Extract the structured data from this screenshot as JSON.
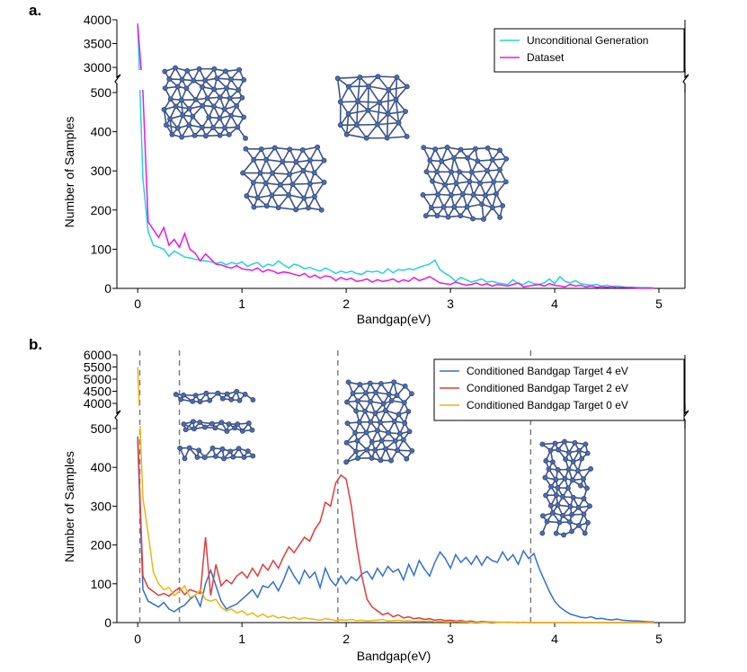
{
  "chart_data": [
    {
      "panel": "a.",
      "type": "line",
      "xlabel": "Bandgap(eV)",
      "ylabel": "Number of Samples",
      "xlim": [
        -0.2,
        5.25
      ],
      "xticks": [
        "0",
        "1",
        "2",
        "3",
        "4",
        "5"
      ],
      "broken_y_axis": true,
      "ylim_lower": [
        0,
        500
      ],
      "ylim_upper": [
        3000,
        4000
      ],
      "yticks_lower": [
        "0",
        "100",
        "200",
        "300",
        "400",
        "500"
      ],
      "yticks_upper": [
        "3000",
        "3500",
        "4000"
      ],
      "legend_position": "top-right",
      "grid": false,
      "series": [
        {
          "name": "Unconditional Generation",
          "color": "#22d3e0",
          "x": [
            0.0,
            0.05,
            0.1,
            0.15,
            0.2,
            0.25,
            0.3,
            0.35,
            0.4,
            0.45,
            0.5,
            0.55,
            0.6,
            0.65,
            0.7,
            0.75,
            0.8,
            0.85,
            0.9,
            0.95,
            1.0,
            1.05,
            1.1,
            1.15,
            1.2,
            1.25,
            1.3,
            1.35,
            1.4,
            1.45,
            1.5,
            1.55,
            1.6,
            1.65,
            1.7,
            1.75,
            1.8,
            1.85,
            1.9,
            1.95,
            2.0,
            2.05,
            2.1,
            2.15,
            2.2,
            2.25,
            2.3,
            2.35,
            2.4,
            2.45,
            2.5,
            2.55,
            2.6,
            2.65,
            2.7,
            2.75,
            2.8,
            2.85,
            2.9,
            2.95,
            3.0,
            3.05,
            3.1,
            3.15,
            3.2,
            3.25,
            3.3,
            3.35,
            3.4,
            3.45,
            3.5,
            3.55,
            3.6,
            3.65,
            3.7,
            3.75,
            3.8,
            3.85,
            3.9,
            3.95,
            4.0,
            4.05,
            4.1,
            4.15,
            4.2,
            4.25,
            4.3,
            4.35,
            4.4,
            4.45,
            4.5,
            4.55,
            4.6,
            4.65,
            4.7,
            4.75,
            4.8,
            4.85,
            4.9,
            4.95
          ],
          "y": [
            3930,
            280,
            145,
            110,
            105,
            100,
            82,
            95,
            88,
            80,
            78,
            74,
            72,
            70,
            68,
            64,
            67,
            60,
            66,
            62,
            68,
            56,
            62,
            66,
            54,
            62,
            58,
            70,
            60,
            52,
            62,
            58,
            50,
            54,
            48,
            44,
            52,
            46,
            38,
            44,
            40,
            44,
            38,
            36,
            44,
            42,
            44,
            38,
            50,
            40,
            48,
            46,
            50,
            48,
            54,
            58,
            62,
            72,
            48,
            38,
            30,
            18,
            28,
            22,
            16,
            20,
            24,
            16,
            18,
            14,
            12,
            10,
            22,
            12,
            10,
            18,
            12,
            10,
            14,
            24,
            12,
            30,
            18,
            14,
            20,
            12,
            10,
            8,
            10,
            6,
            8,
            5,
            6,
            4,
            3,
            3,
            2,
            2,
            2,
            1
          ]
        },
        {
          "name": "Dataset",
          "color": "#e619e8",
          "x": [
            0.0,
            0.05,
            0.1,
            0.15,
            0.2,
            0.25,
            0.3,
            0.35,
            0.4,
            0.45,
            0.5,
            0.55,
            0.6,
            0.65,
            0.7,
            0.75,
            0.8,
            0.85,
            0.9,
            0.95,
            1.0,
            1.05,
            1.1,
            1.15,
            1.2,
            1.25,
            1.3,
            1.35,
            1.4,
            1.45,
            1.5,
            1.55,
            1.6,
            1.65,
            1.7,
            1.75,
            1.8,
            1.85,
            1.9,
            1.95,
            2.0,
            2.05,
            2.1,
            2.15,
            2.2,
            2.25,
            2.3,
            2.35,
            2.4,
            2.45,
            2.5,
            2.55,
            2.6,
            2.65,
            2.7,
            2.75,
            2.8,
            2.85,
            2.9,
            2.95,
            3.0,
            3.05,
            3.1,
            3.15,
            3.2,
            3.25,
            3.3,
            3.35,
            3.4,
            3.45,
            3.5,
            3.55,
            3.6,
            3.65,
            3.7,
            3.75,
            3.8,
            3.85,
            3.9,
            3.95,
            4.0,
            4.05,
            4.1,
            4.15,
            4.2,
            4.25,
            4.3,
            4.35,
            4.4,
            4.45,
            4.5,
            4.55,
            4.6,
            4.65,
            4.7,
            4.75,
            4.8,
            4.85,
            4.9,
            4.95
          ],
          "y": [
            3900,
            500,
            170,
            150,
            130,
            155,
            110,
            125,
            105,
            140,
            100,
            90,
            70,
            88,
            75,
            62,
            60,
            55,
            52,
            58,
            50,
            48,
            46,
            52,
            42,
            48,
            44,
            38,
            42,
            40,
            36,
            32,
            38,
            28,
            34,
            26,
            32,
            30,
            20,
            28,
            22,
            26,
            18,
            20,
            24,
            16,
            22,
            18,
            20,
            24,
            16,
            22,
            18,
            28,
            20,
            24,
            30,
            22,
            14,
            12,
            10,
            16,
            12,
            8,
            10,
            14,
            8,
            12,
            6,
            10,
            8,
            6,
            10,
            14,
            4,
            6,
            8,
            10,
            6,
            12,
            8,
            6,
            4,
            10,
            6,
            8,
            4,
            6,
            3,
            4,
            3,
            4,
            2,
            3,
            2,
            2,
            1,
            1,
            1,
            1
          ]
        }
      ]
    },
    {
      "panel": "b.",
      "type": "line",
      "xlabel": "Bandgap(eV)",
      "ylabel": "Number of Samples",
      "xlim": [
        -0.2,
        5.25
      ],
      "xticks": [
        "0",
        "1",
        "2",
        "3",
        "4",
        "5"
      ],
      "broken_y_axis": true,
      "ylim_lower": [
        0,
        500
      ],
      "ylim_upper": [
        4000,
        6000
      ],
      "yticks_lower": [
        "0",
        "100",
        "200",
        "300",
        "400",
        "500"
      ],
      "yticks_upper": [
        "4000",
        "4500",
        "5000",
        "5500",
        "6000"
      ],
      "legend_position": "top-right",
      "grid": false,
      "vlines": [
        0.02,
        0.4,
        1.92,
        3.77
      ],
      "series": [
        {
          "name": "Conditioned Bandgap Target 4 eV",
          "color": "#2f6fd8",
          "x": [
            0.0,
            0.05,
            0.1,
            0.15,
            0.2,
            0.25,
            0.3,
            0.35,
            0.4,
            0.45,
            0.5,
            0.55,
            0.6,
            0.65,
            0.7,
            0.75,
            0.8,
            0.85,
            0.9,
            0.95,
            1.0,
            1.05,
            1.1,
            1.15,
            1.2,
            1.25,
            1.3,
            1.35,
            1.4,
            1.45,
            1.5,
            1.55,
            1.6,
            1.65,
            1.7,
            1.75,
            1.8,
            1.85,
            1.9,
            1.95,
            2.0,
            2.05,
            2.1,
            2.15,
            2.2,
            2.25,
            2.3,
            2.35,
            2.4,
            2.45,
            2.5,
            2.55,
            2.6,
            2.65,
            2.7,
            2.75,
            2.8,
            2.85,
            2.9,
            2.95,
            3.0,
            3.05,
            3.1,
            3.15,
            3.2,
            3.25,
            3.3,
            3.35,
            3.4,
            3.45,
            3.5,
            3.55,
            3.6,
            3.65,
            3.7,
            3.75,
            3.8,
            3.85,
            3.9,
            3.95,
            4.0,
            4.05,
            4.1,
            4.15,
            4.2,
            4.25,
            4.3,
            4.35,
            4.4,
            4.45,
            4.5,
            4.55,
            4.6,
            4.65,
            4.7,
            4.75,
            4.8,
            4.85,
            4.9,
            4.95
          ],
          "y": [
            470,
            85,
            55,
            48,
            40,
            52,
            35,
            28,
            38,
            45,
            60,
            70,
            42,
            100,
            135,
            95,
            55,
            35,
            42,
            48,
            60,
            72,
            85,
            65,
            95,
            90,
            105,
            82,
            110,
            145,
            120,
            100,
            135,
            115,
            130,
            90,
            140,
            110,
            95,
            120,
            100,
            118,
            108,
            125,
            132,
            112,
            140,
            120,
            145,
            130,
            138,
            110,
            150,
            122,
            160,
            138,
            120,
            155,
            182,
            165,
            140,
            175,
            155,
            168,
            150,
            172,
            148,
            170,
            160,
            155,
            182,
            160,
            175,
            150,
            185,
            165,
            178,
            140,
            110,
            80,
            55,
            40,
            30,
            22,
            18,
            14,
            12,
            15,
            10,
            11,
            8,
            7,
            9,
            6,
            5,
            4,
            4,
            3,
            2,
            2
          ]
        },
        {
          "name": "Conditioned Bandgap Target 2 eV",
          "color": "#e03c3c",
          "x": [
            0.0,
            0.05,
            0.1,
            0.15,
            0.2,
            0.25,
            0.3,
            0.35,
            0.4,
            0.45,
            0.5,
            0.55,
            0.6,
            0.65,
            0.7,
            0.75,
            0.8,
            0.85,
            0.9,
            0.95,
            1.0,
            1.05,
            1.1,
            1.15,
            1.2,
            1.25,
            1.3,
            1.35,
            1.4,
            1.45,
            1.5,
            1.55,
            1.6,
            1.65,
            1.7,
            1.75,
            1.8,
            1.85,
            1.9,
            1.95,
            2.0,
            2.05,
            2.1,
            2.15,
            2.2,
            2.25,
            2.3,
            2.35,
            2.4,
            2.45,
            2.5,
            2.55,
            2.6,
            2.65,
            2.7,
            2.75,
            2.8,
            2.85,
            2.9,
            2.95,
            3.0,
            3.05,
            3.1,
            3.15,
            3.2,
            3.25,
            3.3,
            3.35,
            3.4,
            3.45,
            3.5,
            3.55,
            3.6,
            3.65,
            3.7,
            3.75,
            3.8,
            3.85,
            3.9,
            3.95,
            4.0,
            4.05,
            4.1,
            4.15,
            4.2,
            4.25,
            4.3,
            4.35,
            4.4,
            4.45,
            4.5,
            4.55,
            4.6,
            4.65,
            4.7,
            4.75,
            4.8,
            4.85,
            4.9,
            4.95
          ],
          "y": [
            480,
            120,
            90,
            80,
            70,
            75,
            68,
            80,
            90,
            72,
            85,
            80,
            75,
            220,
            70,
            150,
            95,
            110,
            100,
            120,
            130,
            115,
            140,
            120,
            150,
            135,
            160,
            140,
            170,
            195,
            180,
            200,
            220,
            210,
            240,
            260,
            310,
            300,
            360,
            380,
            370,
            300,
            200,
            120,
            60,
            40,
            30,
            20,
            25,
            15,
            20,
            12,
            15,
            10,
            12,
            8,
            10,
            6,
            8,
            5,
            6,
            4,
            5,
            3,
            4,
            2,
            3,
            2,
            2,
            1,
            1,
            1,
            1,
            0,
            1,
            0,
            0,
            0,
            0,
            0,
            0,
            0,
            0,
            0,
            0,
            0,
            0,
            0,
            0,
            0,
            0,
            0,
            0,
            0,
            0,
            0,
            0,
            0,
            0,
            0
          ]
        },
        {
          "name": "Conditioned Bandgap Target 0 eV",
          "color": "#f0b413",
          "x": [
            0.0,
            0.05,
            0.1,
            0.15,
            0.2,
            0.25,
            0.3,
            0.35,
            0.4,
            0.45,
            0.5,
            0.55,
            0.6,
            0.65,
            0.7,
            0.75,
            0.8,
            0.85,
            0.9,
            0.95,
            1.0,
            1.05,
            1.1,
            1.15,
            1.2,
            1.25,
            1.3,
            1.35,
            1.4,
            1.45,
            1.5,
            1.55,
            1.6,
            1.65,
            1.7,
            1.75,
            1.8,
            1.85,
            1.9,
            1.95,
            2.0,
            2.05,
            2.1,
            2.15,
            2.2,
            2.25,
            2.3,
            2.35,
            2.4,
            2.45,
            2.5,
            2.55,
            2.6,
            2.65,
            2.7,
            2.75,
            2.8,
            2.85,
            2.9,
            2.95,
            3.0,
            3.05,
            3.1,
            3.15,
            3.2,
            3.25,
            3.3,
            3.35,
            3.4,
            3.45,
            3.5,
            3.55,
            3.6,
            3.65,
            3.7,
            3.75,
            3.8,
            3.85,
            3.9,
            3.95,
            4.0,
            4.05,
            4.1,
            4.15,
            4.2,
            4.25,
            4.3,
            4.35,
            4.4,
            4.45,
            4.5,
            4.55,
            4.6,
            4.65,
            4.7,
            4.75,
            4.8,
            4.85,
            4.9,
            4.95
          ],
          "y": [
            5500,
            320,
            230,
            130,
            100,
            85,
            90,
            70,
            80,
            95,
            65,
            70,
            85,
            60,
            55,
            60,
            40,
            30,
            35,
            25,
            30,
            20,
            25,
            15,
            22,
            14,
            18,
            12,
            15,
            10,
            14,
            8,
            12,
            10,
            8,
            6,
            10,
            8,
            5,
            7,
            6,
            8,
            5,
            6,
            4,
            5,
            6,
            8,
            4,
            5,
            6,
            4,
            5,
            3,
            4,
            3,
            4,
            2,
            3,
            2,
            2,
            3,
            2,
            2,
            1,
            2,
            1,
            1,
            2,
            1,
            1,
            0,
            1,
            1,
            0,
            1,
            0,
            0,
            0,
            0,
            0,
            0,
            0,
            0,
            0,
            0,
            0,
            0,
            0,
            0,
            0,
            0,
            0,
            0,
            0,
            0,
            0,
            0,
            0,
            0
          ]
        }
      ]
    }
  ]
}
